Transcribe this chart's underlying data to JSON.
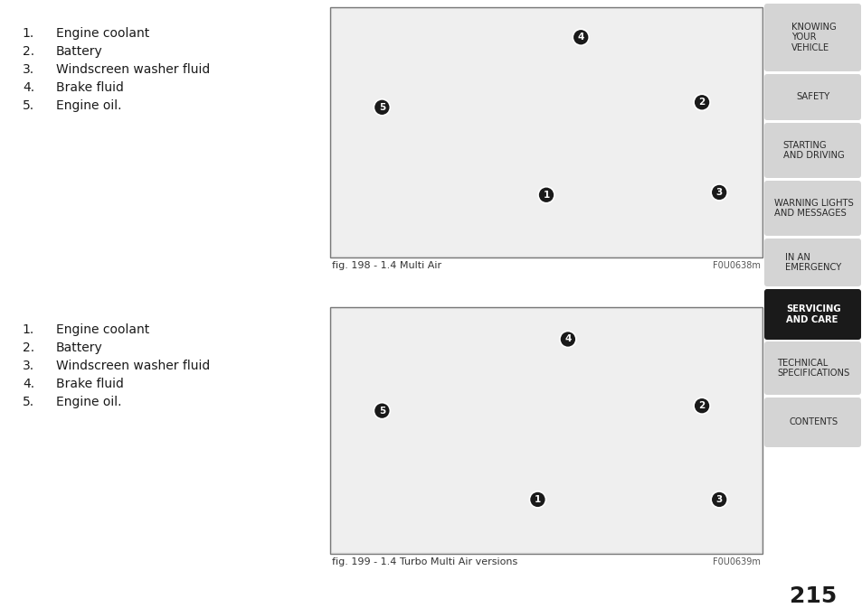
{
  "page_bg": "#ffffff",
  "sidebar_bg": "#d4d4d4",
  "sidebar_active_bg": "#1a1a1a",
  "sidebar_active_text": "#ffffff",
  "sidebar_text": "#2a2a2a",
  "sidebar_items": [
    {
      "label": "KNOWING\nYOUR\nVEHICLE",
      "active": false
    },
    {
      "label": "SAFETY",
      "active": false
    },
    {
      "label": "STARTING\nAND DRIVING",
      "active": false
    },
    {
      "label": "WARNING LIGHTS\nAND MESSAGES",
      "active": false
    },
    {
      "label": "IN AN\nEMERGENCY",
      "active": false
    },
    {
      "label": "SERVICING\nAND CARE",
      "active": true
    },
    {
      "label": "TECHNICAL\nSPECIFICATIONS",
      "active": false
    },
    {
      "label": "CONTENTS",
      "active": false
    }
  ],
  "page_number": "215",
  "list_items": [
    "Engine coolant",
    "Battery",
    "Windscreen washer fluid",
    "Brake fluid",
    "Engine oil."
  ],
  "fig1_caption": "fig. 198 - 1.4 Multi Air",
  "fig1_code": "F0U0638m",
  "fig2_caption": "fig. 199 - 1.4 Turbo Multi Air versions",
  "fig2_code": "F0U0639m"
}
